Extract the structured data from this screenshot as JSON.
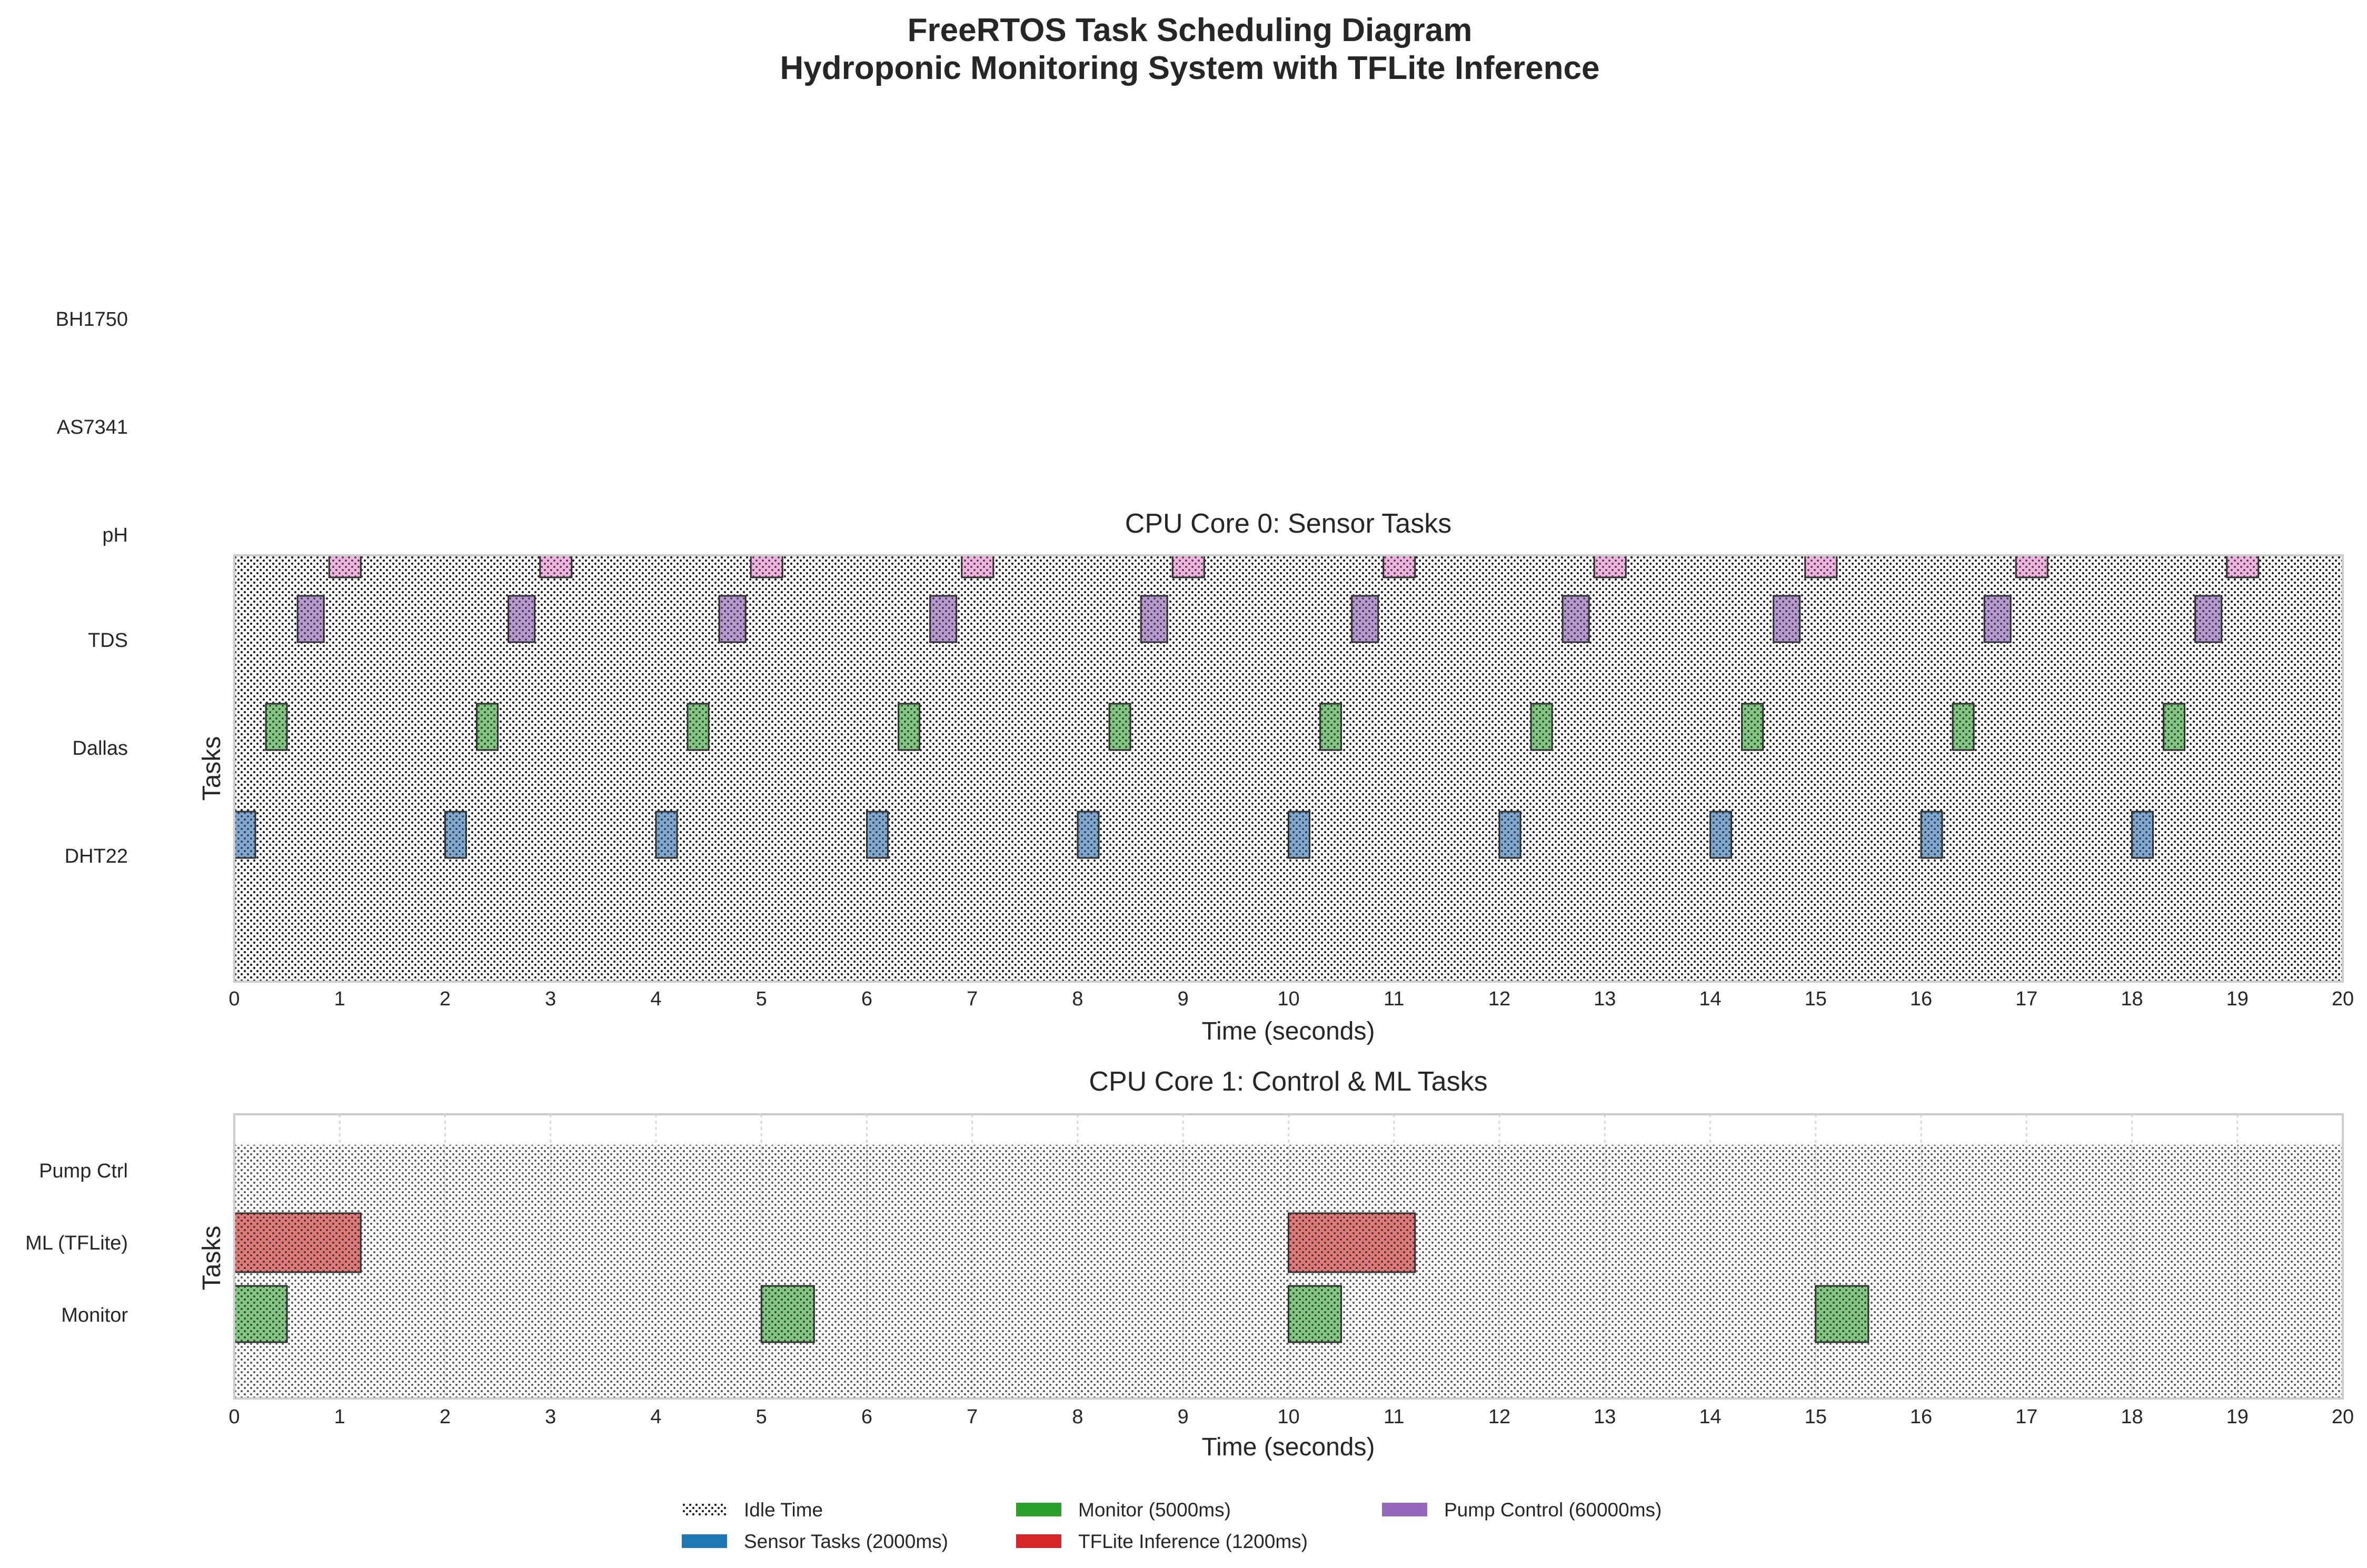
{
  "chart_data": {
    "type": "gantt",
    "title_line1": "FreeRTOS Task Scheduling Diagram",
    "title_line2": "Hydroponic Monitoring System with TFLite Inference",
    "ylabel": "Tasks",
    "xlabel": "Time (seconds)",
    "xlim": [
      0,
      20
    ],
    "x_ticks": [
      0,
      1,
      2,
      3,
      4,
      5,
      6,
      7,
      8,
      9,
      10,
      11,
      12,
      13,
      14,
      15,
      16,
      17,
      18,
      19,
      20
    ],
    "colors": {
      "sensor": "#7fa9d0",
      "monitor": "#82c782",
      "ml": "#e07a7a",
      "pump": "#b59bcf",
      "pink": "#f2b4e0",
      "idle_dot": "#1a1a1a",
      "sensor_legend": "#1f77b4",
      "monitor_legend": "#2ca02c",
      "ml_legend": "#d62728",
      "pump_legend": "#9467bd"
    },
    "outer_task_labels": [
      "BH1750",
      "AS7341",
      "pH",
      "TDS",
      "Dallas",
      "DHT22"
    ],
    "panels": [
      {
        "title": "CPU Core 0: Sensor Tasks",
        "rows": [
          {
            "name": "pH",
            "color": "pink",
            "duration": 0.3,
            "starts": [
              0.9,
              2.9,
              4.9,
              6.9,
              8.9,
              10.9,
              12.9,
              14.9,
              16.9,
              18.9
            ]
          },
          {
            "name": "TDS",
            "color": "pump",
            "duration": 0.25,
            "starts": [
              0.6,
              2.6,
              4.6,
              6.6,
              8.6,
              10.6,
              12.6,
              14.6,
              16.6,
              18.6
            ]
          },
          {
            "name": "Dallas",
            "color": "monitor",
            "duration": 0.2,
            "starts": [
              0.3,
              2.3,
              4.3,
              6.3,
              8.3,
              10.3,
              12.3,
              14.3,
              16.3,
              18.3
            ]
          },
          {
            "name": "DHT22",
            "color": "sensor",
            "duration": 0.2,
            "starts": [
              0.0,
              2.0,
              4.0,
              6.0,
              8.0,
              10.0,
              12.0,
              14.0,
              16.0,
              18.0
            ]
          }
        ]
      },
      {
        "title": "CPU Core 1: Control & ML Tasks",
        "y_labels": [
          "Pump Ctrl",
          "ML (TFLite)",
          "Monitor"
        ],
        "rows": [
          {
            "name": "ML (TFLite)",
            "color": "ml",
            "duration": 1.2,
            "starts": [
              0,
              10
            ]
          },
          {
            "name": "Monitor",
            "color": "monitor",
            "duration": 0.5,
            "starts": [
              0,
              5,
              10,
              15
            ]
          }
        ]
      }
    ],
    "legend": {
      "placement": "bottom-center",
      "items": [
        {
          "label": "Idle Time",
          "kind": "idle"
        },
        {
          "label": "Sensor Tasks (2000ms)",
          "color": "sensor_legend"
        },
        {
          "label": "Monitor (5000ms)",
          "color": "monitor_legend"
        },
        {
          "label": "TFLite Inference (1200ms)",
          "color": "ml_legend"
        },
        {
          "label": "Pump Control (60000ms)",
          "color": "pump_legend"
        }
      ]
    }
  }
}
